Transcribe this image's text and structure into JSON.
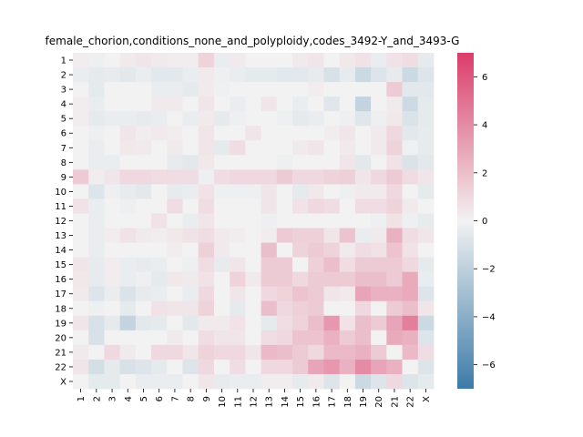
{
  "chart_data": {
    "type": "heatmap",
    "title": "female_chorion,conditions_none_and_polyploidy,codes_3492-Y_and_3493-G",
    "xlabel": "",
    "ylabel": "",
    "x_categories": [
      "1",
      "2",
      "3",
      "4",
      "5",
      "6",
      "7",
      "8",
      "9",
      "10",
      "11",
      "12",
      "13",
      "14",
      "15",
      "16",
      "17",
      "18",
      "19",
      "20",
      "21",
      "22",
      "X"
    ],
    "y_categories": [
      "1",
      "2",
      "3",
      "4",
      "5",
      "6",
      "7",
      "8",
      "9",
      "10",
      "11",
      "12",
      "13",
      "14",
      "15",
      "16",
      "17",
      "18",
      "19",
      "20",
      "21",
      "22",
      "X"
    ],
    "colorbar": {
      "vmin": -7,
      "vmax": 7,
      "ticks": [
        -6,
        -4,
        -2,
        0,
        2,
        4,
        6
      ],
      "low_color": "#3d7ba8",
      "mid_color": "#f2f2f2",
      "high_color": "#db3d6b"
    },
    "values": [
      [
        0.2,
        -0.2,
        0.0,
        0.3,
        0.5,
        0.3,
        0.2,
        0.2,
        1.2,
        -0.3,
        0.3,
        0.0,
        0.0,
        0.0,
        0.3,
        0.5,
        0.0,
        0.4,
        0.6,
        -0.3,
        0.6,
        0.8,
        -0.5
      ],
      [
        -0.3,
        -0.5,
        -0.4,
        -0.6,
        -0.3,
        -0.6,
        -0.6,
        -0.3,
        0.3,
        -0.2,
        -0.3,
        -0.5,
        -0.5,
        -0.6,
        -0.6,
        -0.4,
        -1.0,
        -0.4,
        -1.5,
        -0.8,
        -0.4,
        -1.5,
        -0.8
      ],
      [
        0.0,
        -0.5,
        0.0,
        0.0,
        0.0,
        -0.3,
        -0.3,
        -0.5,
        0.3,
        -0.1,
        0.0,
        0.0,
        0.0,
        0.0,
        0.0,
        0.2,
        0.0,
        0.0,
        0.0,
        0.0,
        1.5,
        -0.6,
        -0.6
      ],
      [
        0.2,
        -0.3,
        0.0,
        0.0,
        0.0,
        0.3,
        0.3,
        0.0,
        0.5,
        0.0,
        -0.3,
        0.0,
        0.5,
        0.0,
        -0.3,
        0.0,
        -0.7,
        0.0,
        -1.8,
        0.0,
        0.3,
        -1.4,
        -0.5
      ],
      [
        0.2,
        -0.5,
        -0.3,
        -0.3,
        -0.4,
        -0.3,
        0.0,
        -0.3,
        0.3,
        -0.5,
        -0.2,
        0.0,
        0.0,
        -0.2,
        -0.5,
        -0.3,
        0.0,
        -0.2,
        -0.7,
        -0.2,
        0.4,
        -0.9,
        -0.5
      ],
      [
        0.0,
        -0.2,
        0.0,
        0.5,
        0.2,
        0.3,
        0.2,
        0.0,
        0.5,
        0.0,
        0.0,
        0.5,
        0.0,
        0.0,
        0.0,
        0.0,
        0.2,
        0.5,
        0.0,
        0.3,
        1.0,
        -0.6,
        -0.4
      ],
      [
        0.0,
        -0.3,
        0.0,
        0.4,
        0.3,
        0.0,
        0.3,
        0.0,
        0.5,
        -0.5,
        0.8,
        0.0,
        0.0,
        0.0,
        0.3,
        0.5,
        0.0,
        0.3,
        0.0,
        0.3,
        1.2,
        -0.1,
        -0.4
      ],
      [
        0.0,
        -0.3,
        -0.3,
        0.0,
        0.0,
        0.0,
        -0.4,
        -0.6,
        0.4,
        0.0,
        0.0,
        0.0,
        0.0,
        -0.2,
        0.0,
        0.0,
        0.0,
        0.5,
        -0.6,
        0.0,
        0.6,
        -0.9,
        -0.6
      ],
      [
        1.5,
        0.2,
        0.5,
        1.0,
        1.0,
        0.8,
        0.8,
        0.8,
        -0.2,
        0.8,
        1.0,
        1.0,
        1.0,
        1.5,
        1.0,
        1.0,
        1.2,
        1.3,
        0.5,
        1.0,
        1.5,
        0.8,
        0.5
      ],
      [
        0.0,
        -0.8,
        -0.2,
        -0.4,
        -0.6,
        0.0,
        -0.4,
        -0.3,
        0.6,
        -0.2,
        -0.2,
        -0.2,
        0.5,
        0.0,
        -0.5,
        0.4,
        0.0,
        -0.2,
        0.3,
        0.3,
        1.0,
        0.0,
        -0.5
      ],
      [
        0.6,
        -0.3,
        0.0,
        -0.2,
        0.0,
        0.0,
        0.8,
        0.0,
        0.8,
        0.0,
        0.0,
        0.0,
        0.5,
        0.0,
        0.6,
        1.0,
        0.8,
        0.0,
        0.8,
        0.8,
        1.2,
        0.3,
        0.0
      ],
      [
        0.0,
        -0.3,
        0.0,
        0.0,
        0.0,
        0.6,
        0.0,
        -0.3,
        0.5,
        0.0,
        0.0,
        0.0,
        -0.2,
        0.0,
        0.0,
        0.0,
        0.0,
        0.0,
        0.0,
        -0.2,
        0.6,
        -0.2,
        -0.4
      ],
      [
        0.0,
        -0.3,
        0.2,
        0.6,
        0.3,
        0.2,
        0.4,
        0.6,
        0.8,
        0.3,
        0.2,
        0.0,
        0.2,
        1.5,
        1.3,
        1.3,
        0.5,
        1.8,
        -0.3,
        0.3,
        2.5,
        0.8,
        0.5
      ],
      [
        0.0,
        -0.3,
        0.0,
        0.0,
        0.0,
        0.0,
        0.2,
        0.0,
        1.3,
        0.3,
        0.0,
        0.0,
        2.0,
        0.0,
        1.2,
        1.5,
        1.2,
        0.3,
        0.8,
        0.6,
        1.8,
        0.6,
        0.0
      ],
      [
        0.5,
        -0.4,
        0.2,
        -0.3,
        -0.4,
        -0.3,
        0.0,
        -0.2,
        0.8,
        -0.4,
        0.5,
        0.0,
        1.5,
        1.5,
        0.0,
        1.3,
        2.0,
        0.8,
        1.5,
        1.5,
        1.5,
        1.0,
        -0.5
      ],
      [
        0.4,
        -0.4,
        0.2,
        -0.3,
        -0.2,
        -0.5,
        0.4,
        0.3,
        0.6,
        0.0,
        1.2,
        0.3,
        1.5,
        1.5,
        1.0,
        1.5,
        1.5,
        1.5,
        2.0,
        2.0,
        1.5,
        2.8,
        -0.3
      ],
      [
        0.3,
        -0.8,
        -0.3,
        -0.9,
        -0.4,
        -0.3,
        0.0,
        -0.3,
        1.0,
        0.0,
        0.5,
        0.0,
        1.0,
        1.2,
        1.8,
        1.5,
        0.5,
        0.3,
        3.0,
        2.5,
        2.5,
        2.8,
        -0.8
      ],
      [
        0.0,
        -0.2,
        0.0,
        -0.5,
        0.0,
        0.6,
        0.5,
        0.5,
        1.2,
        0.0,
        -0.5,
        0.0,
        2.0,
        1.0,
        1.3,
        1.5,
        0.0,
        0.0,
        1.0,
        0.0,
        1.5,
        2.0,
        0.5
      ],
      [
        0.5,
        -1.0,
        -0.5,
        -1.8,
        -0.6,
        -0.5,
        0.0,
        -0.6,
        0.3,
        0.3,
        0.6,
        0.0,
        -0.5,
        0.8,
        1.2,
        2.0,
        3.5,
        0.6,
        2.0,
        1.5,
        3.0,
        4.5,
        -1.5
      ],
      [
        0.0,
        -1.0,
        0.0,
        0.0,
        0.0,
        0.0,
        0.3,
        0.0,
        0.8,
        0.5,
        0.5,
        0.0,
        0.8,
        1.0,
        1.8,
        1.8,
        2.5,
        1.5,
        2.0,
        0.0,
        2.8,
        2.5,
        -0.8
      ],
      [
        0.3,
        0.0,
        1.0,
        0.3,
        0.0,
        1.0,
        1.0,
        0.5,
        1.2,
        1.0,
        1.0,
        0.5,
        2.2,
        2.0,
        1.5,
        1.0,
        2.2,
        2.2,
        2.5,
        1.5,
        0.0,
        2.2,
        0.8
      ],
      [
        0.5,
        -1.2,
        -0.5,
        -1.0,
        -0.8,
        -0.5,
        0.0,
        -0.8,
        1.0,
        0.0,
        0.8,
        0.0,
        1.0,
        1.0,
        1.5,
        3.0,
        3.5,
        2.5,
        4.0,
        3.0,
        2.5,
        0.0,
        -0.8
      ],
      [
        0.0,
        -0.5,
        -0.5,
        0.0,
        -0.3,
        -0.3,
        -0.3,
        0.0,
        0.5,
        -0.4,
        -0.3,
        -0.3,
        0.2,
        0.2,
        -0.4,
        0.3,
        -0.8,
        0.0,
        -1.5,
        -0.8,
        1.0,
        -0.8,
        -0.5
      ]
    ]
  }
}
